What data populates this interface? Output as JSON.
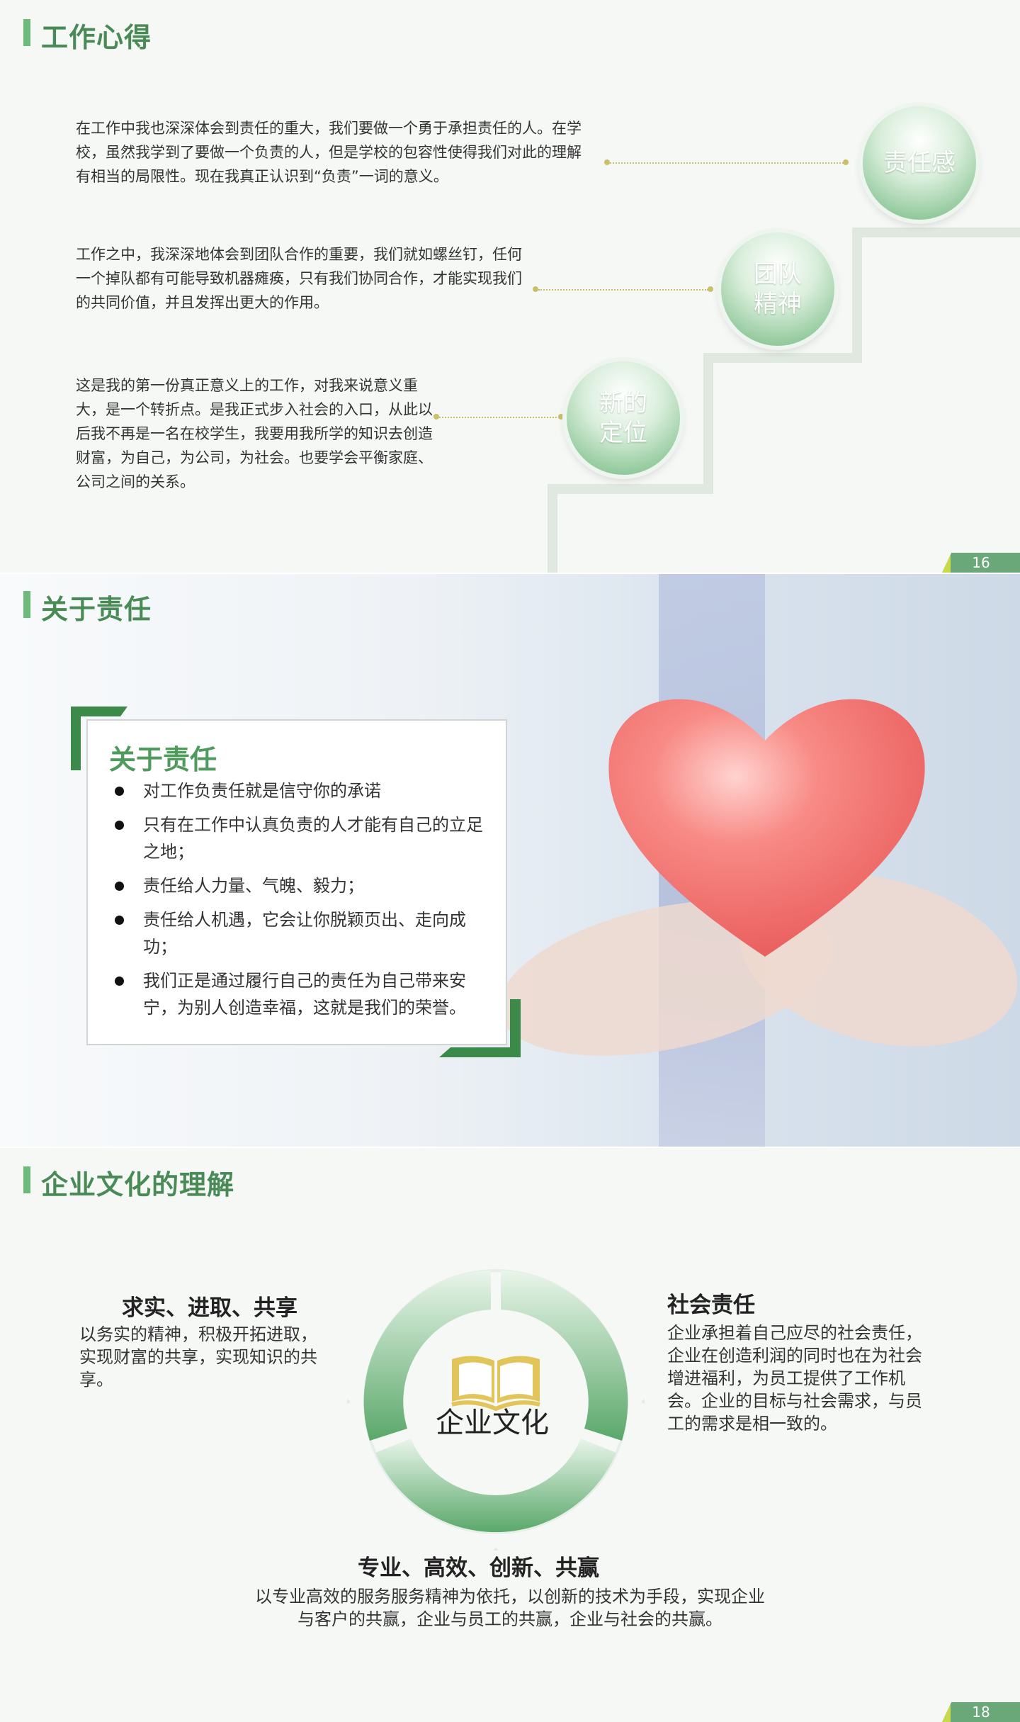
{
  "slide1": {
    "title": "工作心得",
    "page": "16",
    "items": [
      {
        "label": "责任感",
        "text": "在工作中我也深深体会到责任的重大，我们要做一个勇于承担责任的人。在学校，虽然我学到了要做一个负责的人，但是学校的包容性使得我们对此的理解有相当的局限性。现在我真正认识到“负责”一词的意义。"
      },
      {
        "label": "团队\n精神",
        "text": "工作之中，我深深地体会到团队合作的重要，我们就如螺丝钉，任何一个掉队都有可能导致机器瘫痪，只有我们协同合作，才能实现我们的共同价值，并且发挥出更大的作用。"
      },
      {
        "label": "新的\n定位",
        "text": "这是我的第一份真正意义上的工作，对我来说意义重大，是一个转折点。是我正式步入社会的入口，从此以后我不再是一名在校学生，我要用我所学的知识去创造财富，为自己，为公司，为社会。也要学会平衡家庭、公司之间的关系。"
      }
    ]
  },
  "slide2": {
    "title": "关于责任",
    "card_title": "关于责任",
    "bullets": [
      "对工作负责任就是信守你的承诺",
      "只有在工作中认真负责的人才能有自己的立足之地；",
      "责任给人力量、气魄、毅力；",
      "责任给人机遇，它会让你脱颖页出、走向成功；",
      "我们正是通过履行自己的责任为自己带来安宁，为别人创造幸福，这就是我们的荣誉。"
    ]
  },
  "slide3": {
    "title": "企业文化的理解",
    "page": "18",
    "center": "企业文化",
    "left": {
      "heading": "求实、进取、共享",
      "text": "以务实的精神，积极开拓进取，实现财富的共享，实现知识的共享。"
    },
    "right": {
      "heading": "社会责任",
      "text": "企业承担着自己应尽的社会责任，企业在创造利润的同时也在为社会增进福利，为员工提供了工作机会。企业的目标与社会需求，与员工的需求是相一致的。"
    },
    "bottom": {
      "heading": "专业、高效、创新、共赢",
      "text": "以专业高效的服务服务精神为依托，以创新的技术为手段，实现企业与客户的共赢，企业与员工的共赢，企业与社会的共赢。"
    }
  },
  "colors": {
    "accent": "#6dbb7a",
    "title": "#4a8a56",
    "yellow": "#c9c06a"
  }
}
